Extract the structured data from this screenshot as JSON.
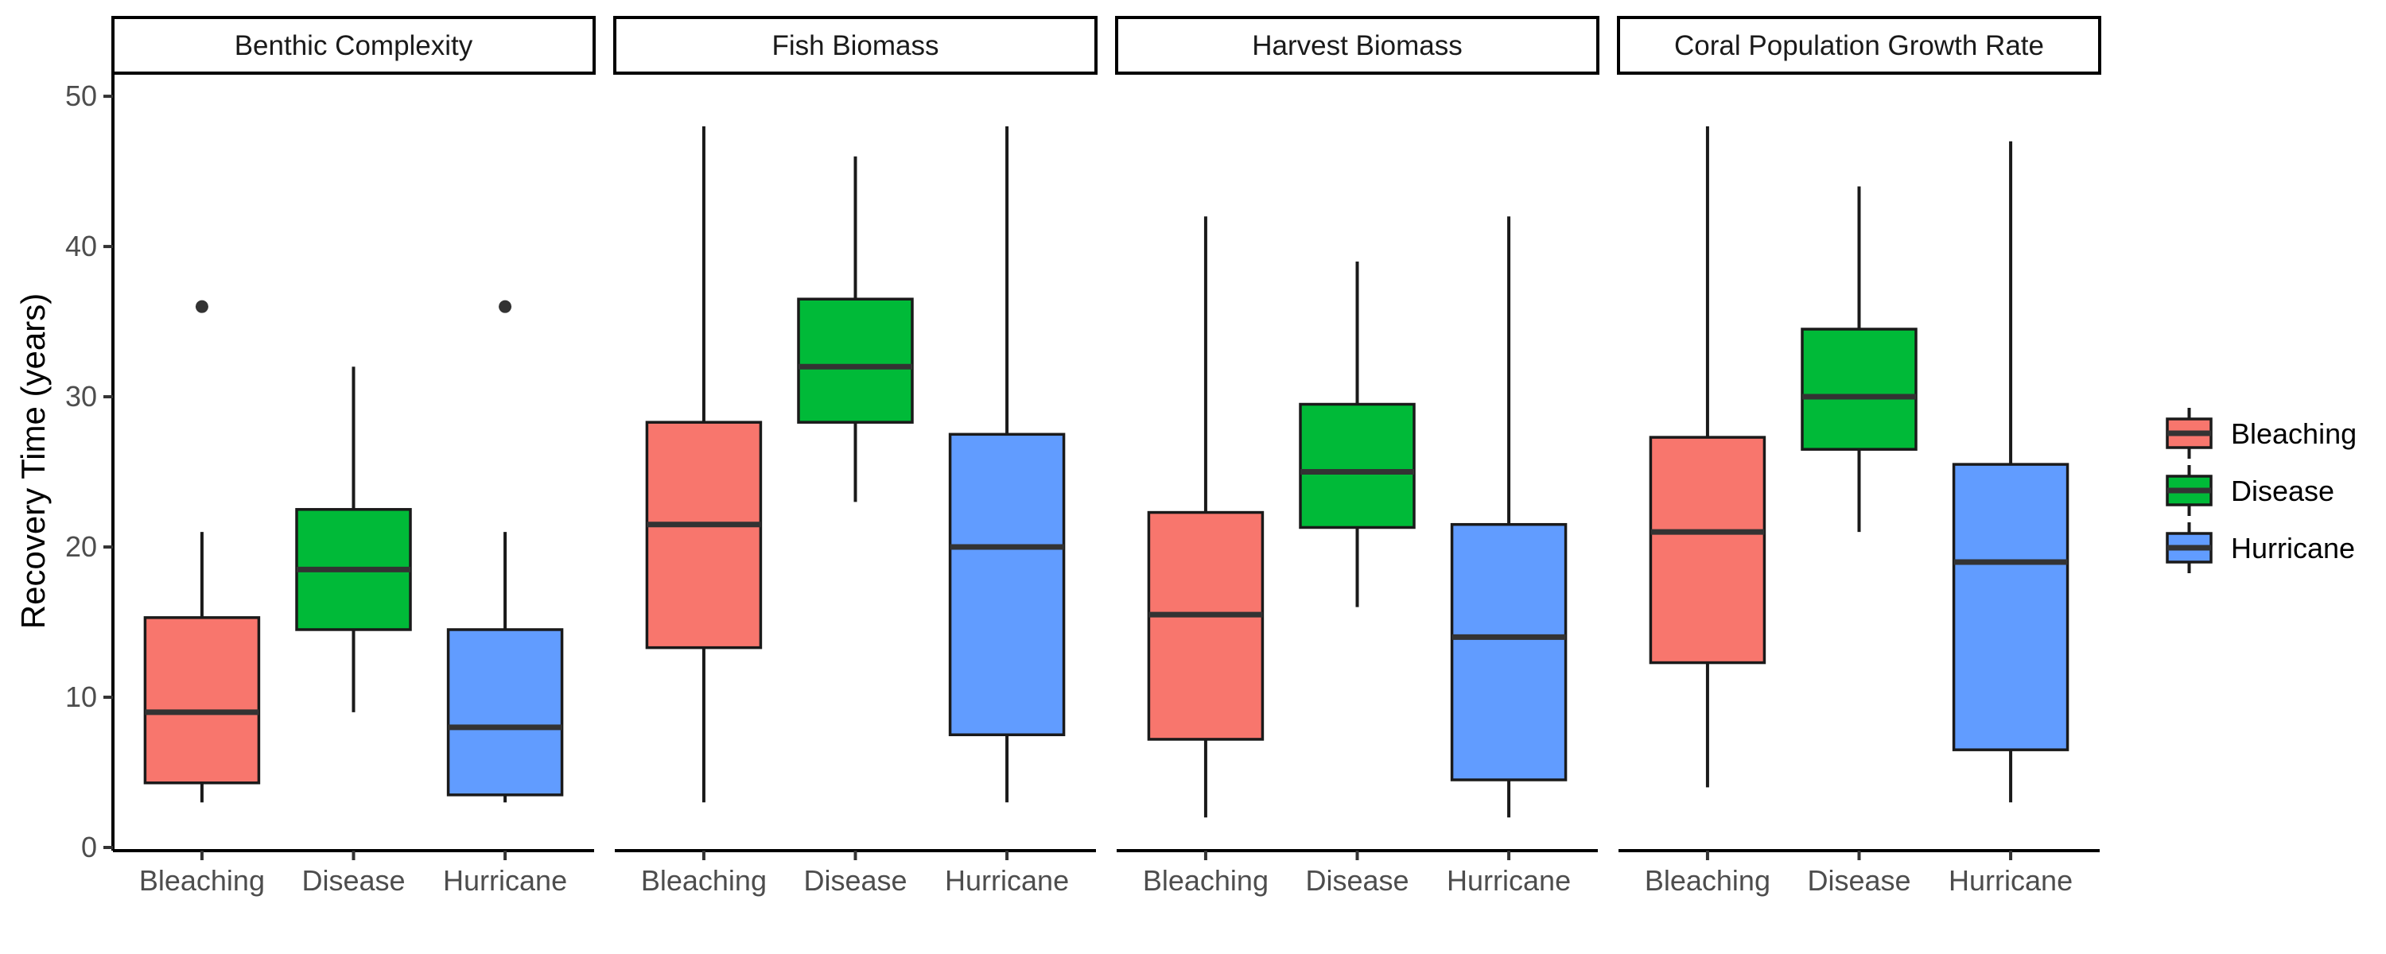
{
  "chart_data": {
    "type": "boxplot",
    "ylabel": "Recovery Time (years)",
    "ylim": [
      0,
      50
    ],
    "yticks": [
      0,
      10,
      20,
      30,
      40,
      50
    ],
    "categories": [
      "Bleaching",
      "Disease",
      "Hurricane"
    ],
    "colors": {
      "Bleaching": "#F8766D",
      "Disease": "#00BA38",
      "Hurricane": "#619CFF"
    },
    "legend": {
      "position": "right",
      "entries": [
        "Bleaching",
        "Disease",
        "Hurricane"
      ]
    },
    "panels": [
      {
        "title": "Benthic Complexity",
        "boxes": [
          {
            "category": "Bleaching",
            "min": 3,
            "q1": 4.3,
            "median": 9,
            "q3": 15.3,
            "max": 21,
            "outliers": [
              36
            ]
          },
          {
            "category": "Disease",
            "min": 9,
            "q1": 14.5,
            "median": 18.5,
            "q3": 22.5,
            "max": 32,
            "outliers": []
          },
          {
            "category": "Hurricane",
            "min": 3,
            "q1": 3.5,
            "median": 8,
            "q3": 14.5,
            "max": 21,
            "outliers": [
              36
            ]
          }
        ]
      },
      {
        "title": "Fish Biomass",
        "boxes": [
          {
            "category": "Bleaching",
            "min": 3,
            "q1": 13.3,
            "median": 21.5,
            "q3": 28.3,
            "max": 48,
            "outliers": []
          },
          {
            "category": "Disease",
            "min": 23,
            "q1": 28.3,
            "median": 32,
            "q3": 36.5,
            "max": 46,
            "outliers": []
          },
          {
            "category": "Hurricane",
            "min": 3,
            "q1": 7.5,
            "median": 20,
            "q3": 27.5,
            "max": 48,
            "outliers": []
          }
        ]
      },
      {
        "title": "Harvest Biomass",
        "boxes": [
          {
            "category": "Bleaching",
            "min": 2,
            "q1": 7.2,
            "median": 15.5,
            "q3": 22.3,
            "max": 42,
            "outliers": []
          },
          {
            "category": "Disease",
            "min": 16,
            "q1": 21.3,
            "median": 25,
            "q3": 29.5,
            "max": 39,
            "outliers": []
          },
          {
            "category": "Hurricane",
            "min": 2,
            "q1": 4.5,
            "median": 14,
            "q3": 21.5,
            "max": 42,
            "outliers": []
          }
        ]
      },
      {
        "title": "Coral Population Growth Rate",
        "boxes": [
          {
            "category": "Bleaching",
            "min": 4,
            "q1": 12.3,
            "median": 21,
            "q3": 27.3,
            "max": 48,
            "outliers": []
          },
          {
            "category": "Disease",
            "min": 21,
            "q1": 26.5,
            "median": 30,
            "q3": 34.5,
            "max": 44,
            "outliers": []
          },
          {
            "category": "Hurricane",
            "min": 3,
            "q1": 6.5,
            "median": 19,
            "q3": 25.5,
            "max": 47,
            "outliers": []
          }
        ]
      }
    ]
  }
}
